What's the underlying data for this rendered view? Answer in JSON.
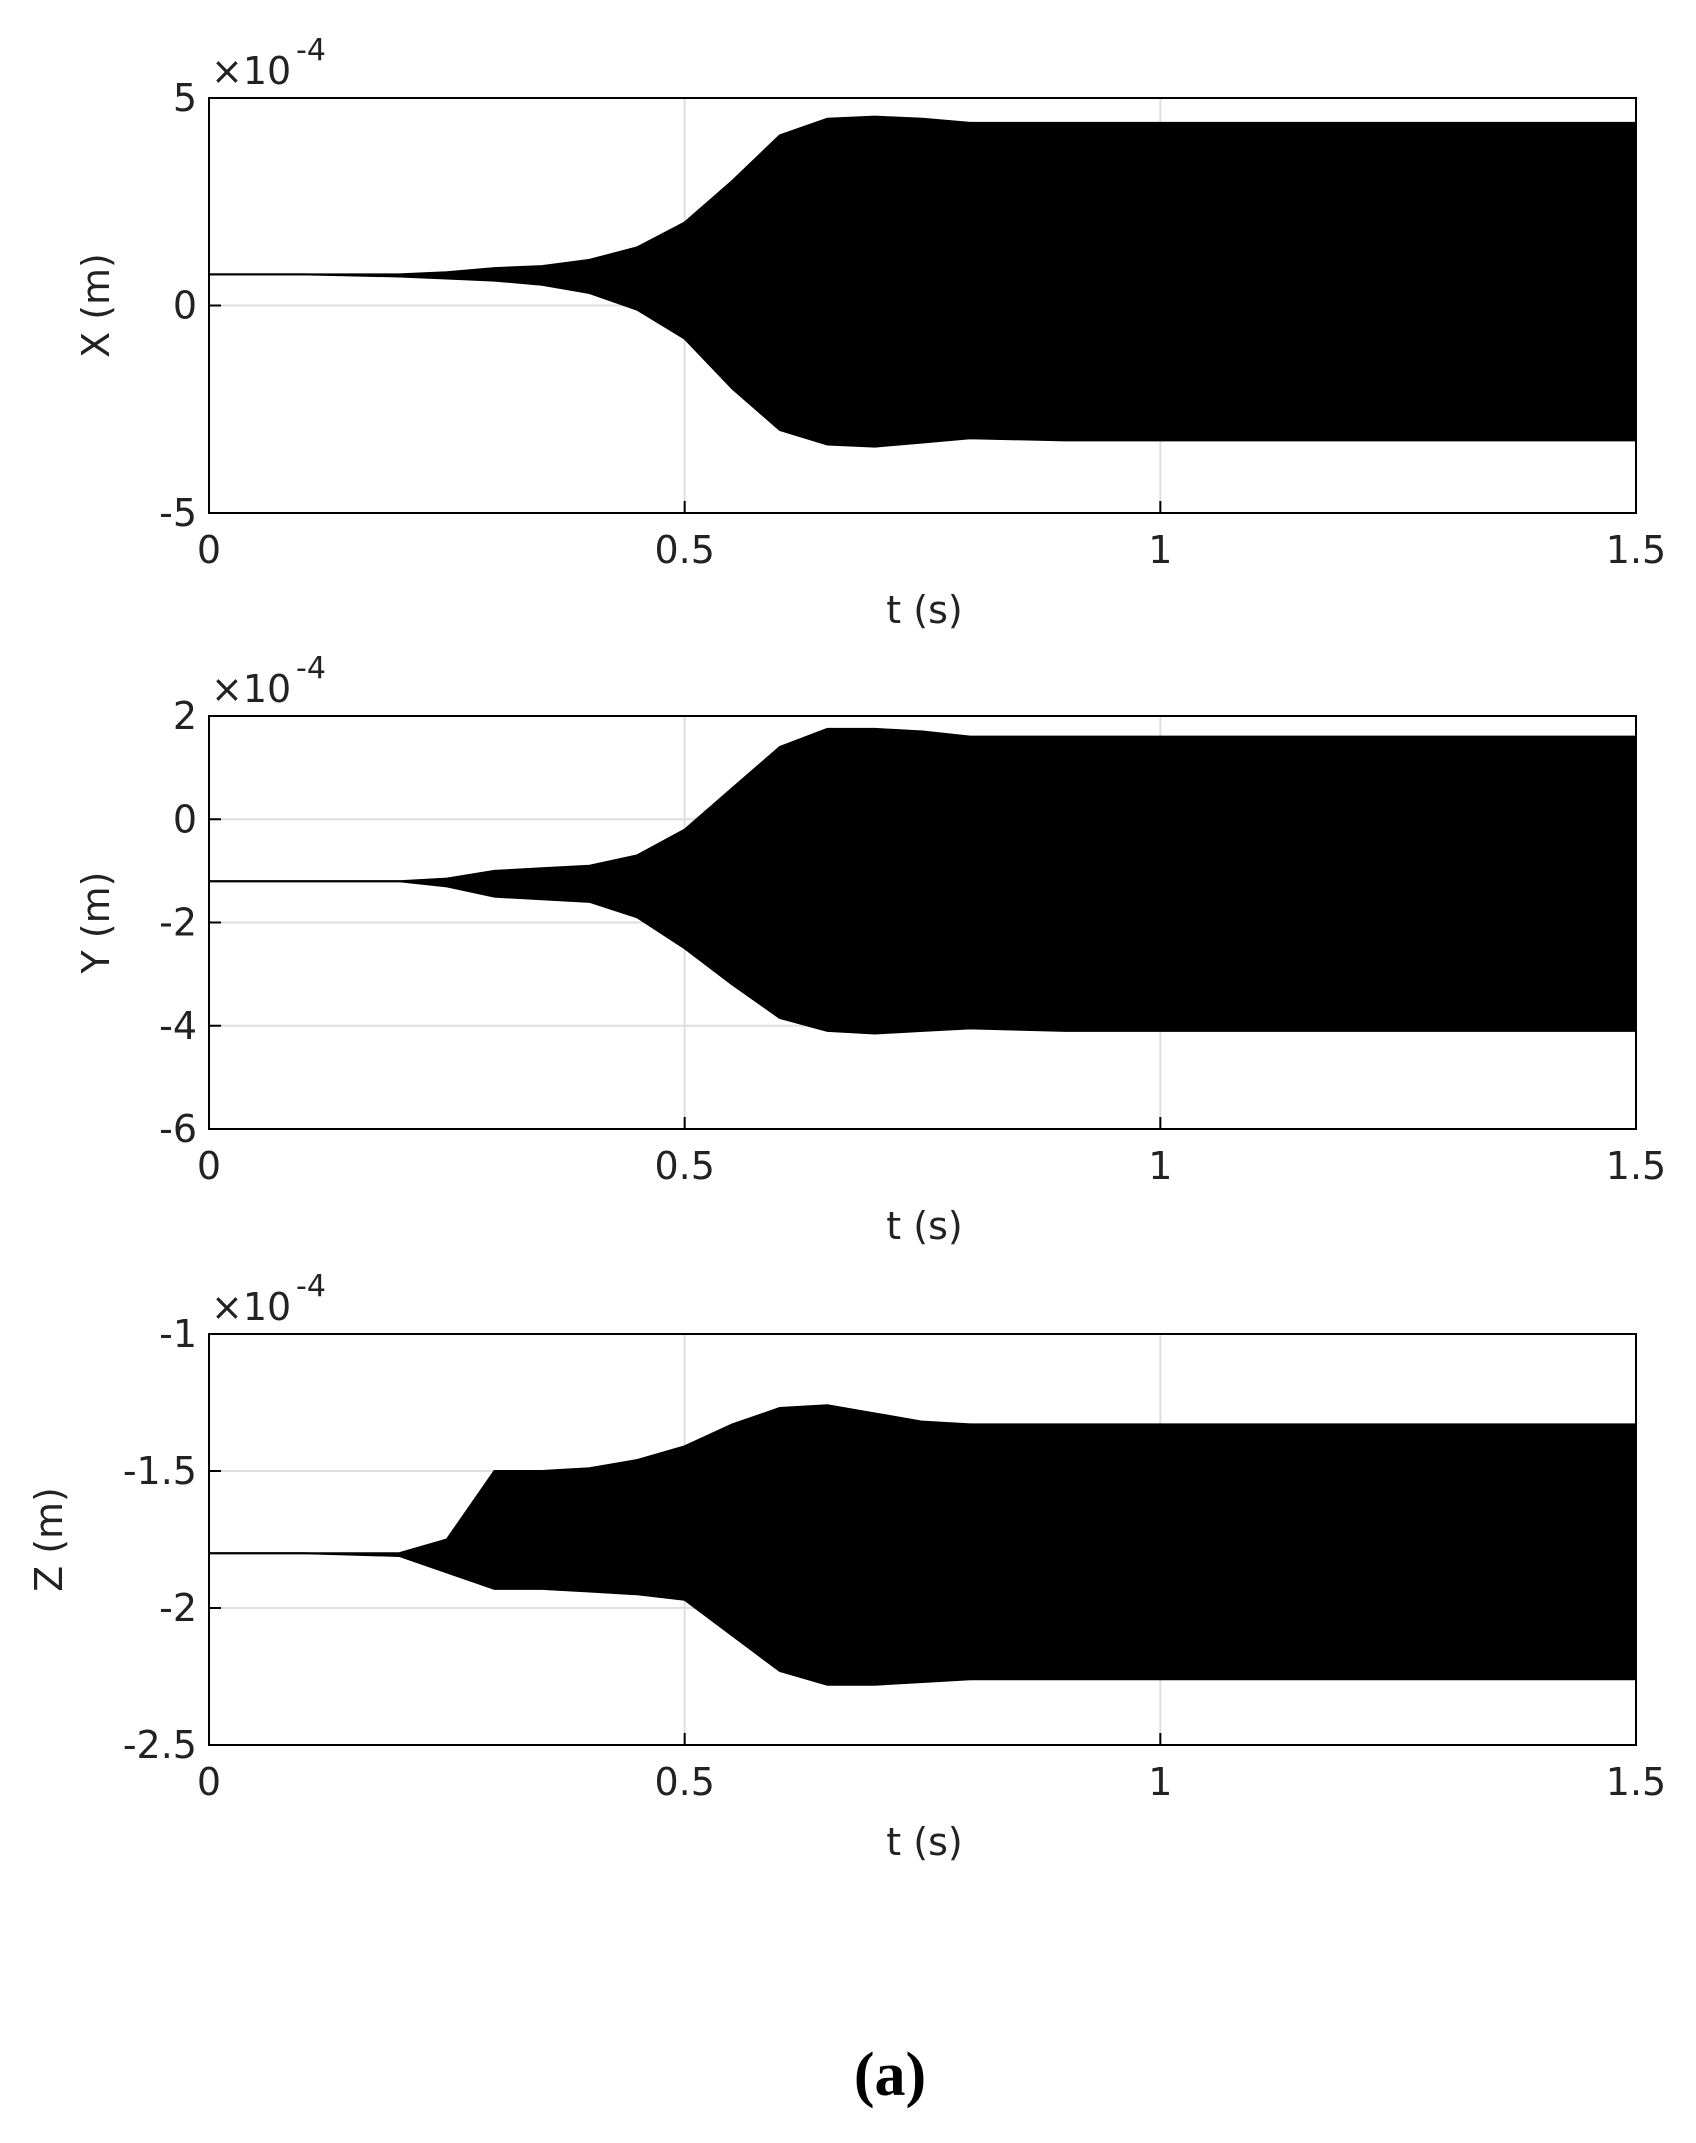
{
  "chart_data": [
    {
      "type": "band",
      "xlabel": "t (s)",
      "ylabel": "X (m)",
      "exponent_base": "×10",
      "exponent": "-4",
      "x": [
        0,
        0.1,
        0.2,
        0.25,
        0.3,
        0.35,
        0.4,
        0.45,
        0.5,
        0.55,
        0.6,
        0.65,
        0.7,
        0.75,
        0.8,
        0.9,
        1.0,
        1.5
      ],
      "upper": [
        0.75,
        0.75,
        0.75,
        0.8,
        0.9,
        0.95,
        1.1,
        1.4,
        2.0,
        3.0,
        4.1,
        4.5,
        4.55,
        4.5,
        4.4,
        4.4,
        4.4,
        4.4
      ],
      "lower": [
        0.75,
        0.75,
        0.7,
        0.65,
        0.6,
        0.5,
        0.3,
        -0.1,
        -0.8,
        -2.0,
        -3.0,
        -3.35,
        -3.4,
        -3.3,
        -3.2,
        -3.25,
        -3.25,
        -3.25
      ],
      "color": "#000000",
      "xlim": [
        0,
        1.5
      ],
      "xticks": [
        0,
        0.5,
        1,
        1.5
      ],
      "ylim": [
        -5,
        5
      ],
      "yticks": [
        -5,
        0,
        5
      ],
      "grid": true
    },
    {
      "type": "band",
      "xlabel": "t (s)",
      "ylabel": "Y (m)",
      "exponent_base": "×10",
      "exponent": "-4",
      "x": [
        0,
        0.1,
        0.2,
        0.25,
        0.3,
        0.35,
        0.4,
        0.45,
        0.5,
        0.55,
        0.6,
        0.65,
        0.7,
        0.75,
        0.8,
        0.9,
        1.0,
        1.5
      ],
      "upper": [
        -1.2,
        -1.2,
        -1.2,
        -1.15,
        -1.0,
        -0.95,
        -0.9,
        -0.7,
        -0.2,
        0.6,
        1.4,
        1.75,
        1.75,
        1.7,
        1.6,
        1.6,
        1.6,
        1.6
      ],
      "lower": [
        -1.2,
        -1.2,
        -1.2,
        -1.3,
        -1.5,
        -1.55,
        -1.6,
        -1.9,
        -2.5,
        -3.2,
        -3.85,
        -4.1,
        -4.15,
        -4.1,
        -4.05,
        -4.1,
        -4.1,
        -4.1
      ],
      "color": "#000000",
      "xlim": [
        0,
        1.5
      ],
      "xticks": [
        0,
        0.5,
        1,
        1.5
      ],
      "ylim": [
        -6,
        2
      ],
      "yticks": [
        -6,
        -4,
        -2,
        0,
        2
      ],
      "grid": true
    },
    {
      "type": "band",
      "xlabel": "t (s)",
      "ylabel": "Z (m)",
      "exponent_base": "×10",
      "exponent": "-4",
      "x": [
        0,
        0.1,
        0.2,
        0.25,
        0.3,
        0.35,
        0.4,
        0.45,
        0.5,
        0.55,
        0.6,
        0.65,
        0.7,
        0.75,
        0.8,
        0.9,
        1.0,
        1.5
      ],
      "upper": [
        -1.8,
        -1.8,
        -1.8,
        -1.75,
        -1.5,
        -1.5,
        -1.49,
        -1.46,
        -1.41,
        -1.33,
        -1.27,
        -1.26,
        -1.29,
        -1.32,
        -1.33,
        -1.33,
        -1.33,
        -1.33
      ],
      "lower": [
        -1.8,
        -1.8,
        -1.81,
        -1.87,
        -1.93,
        -1.93,
        -1.94,
        -1.95,
        -1.97,
        -2.1,
        -2.23,
        -2.28,
        -2.28,
        -2.27,
        -2.26,
        -2.26,
        -2.26,
        -2.26
      ],
      "color": "#000000",
      "xlim": [
        0,
        1.5
      ],
      "xticks": [
        0,
        0.5,
        1,
        1.5
      ],
      "ylim": [
        -2.5,
        -1
      ],
      "yticks": [
        -2.5,
        -2,
        -1.5,
        -1
      ],
      "grid": true
    }
  ],
  "caption": "(a)"
}
